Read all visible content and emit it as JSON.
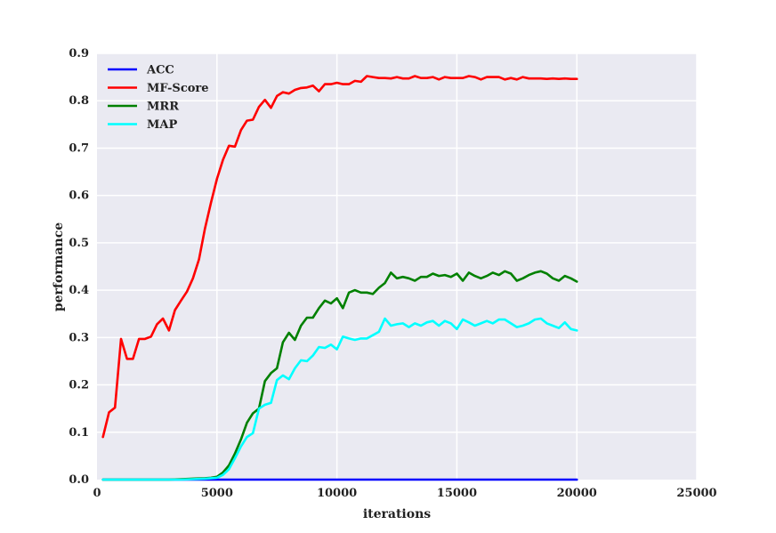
{
  "chart_data": {
    "type": "line",
    "xlabel": "iterations",
    "ylabel": "performance",
    "xlim": [
      0,
      25000
    ],
    "ylim": [
      0.0,
      0.9
    ],
    "xticks": [
      0,
      5000,
      10000,
      15000,
      20000,
      25000
    ],
    "xtick_labels": [
      "0",
      "5000",
      "10000",
      "15000",
      "20000",
      "25000"
    ],
    "yticks": [
      0.0,
      0.1,
      0.2,
      0.3,
      0.4,
      0.5,
      0.6,
      0.7,
      0.8,
      0.9
    ],
    "ytick_labels": [
      "0.0",
      "0.1",
      "0.2",
      "0.3",
      "0.4",
      "0.5",
      "0.6",
      "0.7",
      "0.8",
      "0.9"
    ],
    "grid": true,
    "legend_position": "top-left",
    "background_color": "#eaeaf2",
    "grid_color": "#ffffff",
    "series": [
      {
        "name": "ACC",
        "color": "#0000ff",
        "x": [
          250,
          20000
        ],
        "y": [
          0.0,
          0.0
        ]
      },
      {
        "name": "MF-Score",
        "color": "#ff0000",
        "x": [
          250,
          500,
          750,
          1000,
          1250,
          1500,
          1750,
          2000,
          2250,
          2500,
          2750,
          3000,
          3250,
          3500,
          3750,
          4000,
          4250,
          4500,
          4750,
          5000,
          5250,
          5500,
          5750,
          6000,
          6250,
          6500,
          6750,
          7000,
          7250,
          7500,
          7750,
          8000,
          8250,
          8500,
          8750,
          9000,
          9250,
          9500,
          9750,
          10000,
          10250,
          10500,
          10750,
          11000,
          11250,
          11500,
          11750,
          12000,
          12250,
          12500,
          12750,
          13000,
          13250,
          13500,
          13750,
          14000,
          14250,
          14500,
          14750,
          15000,
          15250,
          15500,
          15750,
          16000,
          16250,
          16500,
          16750,
          17000,
          17250,
          17500,
          17750,
          18000,
          18250,
          18500,
          18750,
          19000,
          19250,
          19500,
          19750,
          20000
        ],
        "y": [
          0.09,
          0.142,
          0.152,
          0.297,
          0.255,
          0.255,
          0.297,
          0.297,
          0.302,
          0.328,
          0.34,
          0.315,
          0.358,
          0.378,
          0.397,
          0.425,
          0.465,
          0.53,
          0.585,
          0.635,
          0.675,
          0.705,
          0.703,
          0.738,
          0.758,
          0.76,
          0.787,
          0.802,
          0.785,
          0.81,
          0.818,
          0.815,
          0.823,
          0.827,
          0.828,
          0.832,
          0.82,
          0.835,
          0.835,
          0.838,
          0.835,
          0.835,
          0.842,
          0.84,
          0.852,
          0.85,
          0.848,
          0.848,
          0.847,
          0.85,
          0.847,
          0.847,
          0.852,
          0.848,
          0.848,
          0.85,
          0.845,
          0.85,
          0.848,
          0.848,
          0.848,
          0.852,
          0.85,
          0.845,
          0.85,
          0.85,
          0.85,
          0.845,
          0.848,
          0.845,
          0.85,
          0.847,
          0.847,
          0.847,
          0.846,
          0.847,
          0.846,
          0.847,
          0.846,
          0.846
        ]
      },
      {
        "name": "MRR",
        "color": "#008000",
        "x": [
          250,
          1000,
          2000,
          3000,
          3500,
          4000,
          4500,
          4750,
          5000,
          5250,
          5500,
          5750,
          6000,
          6250,
          6500,
          6750,
          7000,
          7250,
          7500,
          7750,
          8000,
          8250,
          8500,
          8750,
          9000,
          9250,
          9500,
          9750,
          10000,
          10250,
          10500,
          10750,
          11000,
          11250,
          11500,
          11750,
          12000,
          12250,
          12500,
          12750,
          13000,
          13250,
          13500,
          13750,
          14000,
          14250,
          14500,
          14750,
          15000,
          15250,
          15500,
          15750,
          16000,
          16250,
          16500,
          16750,
          17000,
          17250,
          17500,
          17750,
          18000,
          18250,
          18500,
          18750,
          19000,
          19250,
          19500,
          19750,
          20000
        ],
        "y": [
          0.0,
          0.0,
          0.0,
          0.0,
          0.001,
          0.002,
          0.003,
          0.004,
          0.006,
          0.015,
          0.03,
          0.055,
          0.085,
          0.12,
          0.14,
          0.15,
          0.208,
          0.225,
          0.235,
          0.29,
          0.31,
          0.295,
          0.325,
          0.342,
          0.342,
          0.362,
          0.378,
          0.372,
          0.383,
          0.362,
          0.395,
          0.4,
          0.395,
          0.395,
          0.392,
          0.405,
          0.415,
          0.437,
          0.425,
          0.428,
          0.425,
          0.42,
          0.428,
          0.428,
          0.435,
          0.43,
          0.432,
          0.428,
          0.435,
          0.42,
          0.437,
          0.43,
          0.425,
          0.43,
          0.437,
          0.432,
          0.44,
          0.435,
          0.42,
          0.425,
          0.432,
          0.437,
          0.44,
          0.435,
          0.425,
          0.42,
          0.43,
          0.425,
          0.418
        ]
      },
      {
        "name": "MAP",
        "color": "#00ffff",
        "x": [
          250,
          1000,
          2000,
          3000,
          3500,
          4000,
          4500,
          4750,
          5000,
          5250,
          5500,
          5750,
          6000,
          6250,
          6500,
          6750,
          7000,
          7250,
          7500,
          7750,
          8000,
          8250,
          8500,
          8750,
          9000,
          9250,
          9500,
          9750,
          10000,
          10250,
          10500,
          10750,
          11000,
          11250,
          11500,
          11750,
          12000,
          12250,
          12500,
          12750,
          13000,
          13250,
          13500,
          13750,
          14000,
          14250,
          14500,
          14750,
          15000,
          15250,
          15500,
          15750,
          16000,
          16250,
          16500,
          16750,
          17000,
          17250,
          17500,
          17750,
          18000,
          18250,
          18500,
          18750,
          19000,
          19250,
          19500,
          19750,
          20000
        ],
        "y": [
          0.0,
          0.0,
          0.0,
          0.0,
          0.0,
          0.001,
          0.002,
          0.003,
          0.004,
          0.01,
          0.022,
          0.045,
          0.07,
          0.09,
          0.098,
          0.15,
          0.158,
          0.162,
          0.21,
          0.22,
          0.212,
          0.235,
          0.252,
          0.25,
          0.262,
          0.28,
          0.278,
          0.285,
          0.275,
          0.302,
          0.298,
          0.295,
          0.298,
          0.298,
          0.305,
          0.312,
          0.34,
          0.325,
          0.328,
          0.33,
          0.322,
          0.33,
          0.325,
          0.332,
          0.335,
          0.325,
          0.335,
          0.33,
          0.318,
          0.338,
          0.332,
          0.325,
          0.33,
          0.335,
          0.33,
          0.338,
          0.338,
          0.33,
          0.322,
          0.325,
          0.33,
          0.338,
          0.34,
          0.33,
          0.325,
          0.32,
          0.332,
          0.318,
          0.315
        ]
      }
    ]
  }
}
